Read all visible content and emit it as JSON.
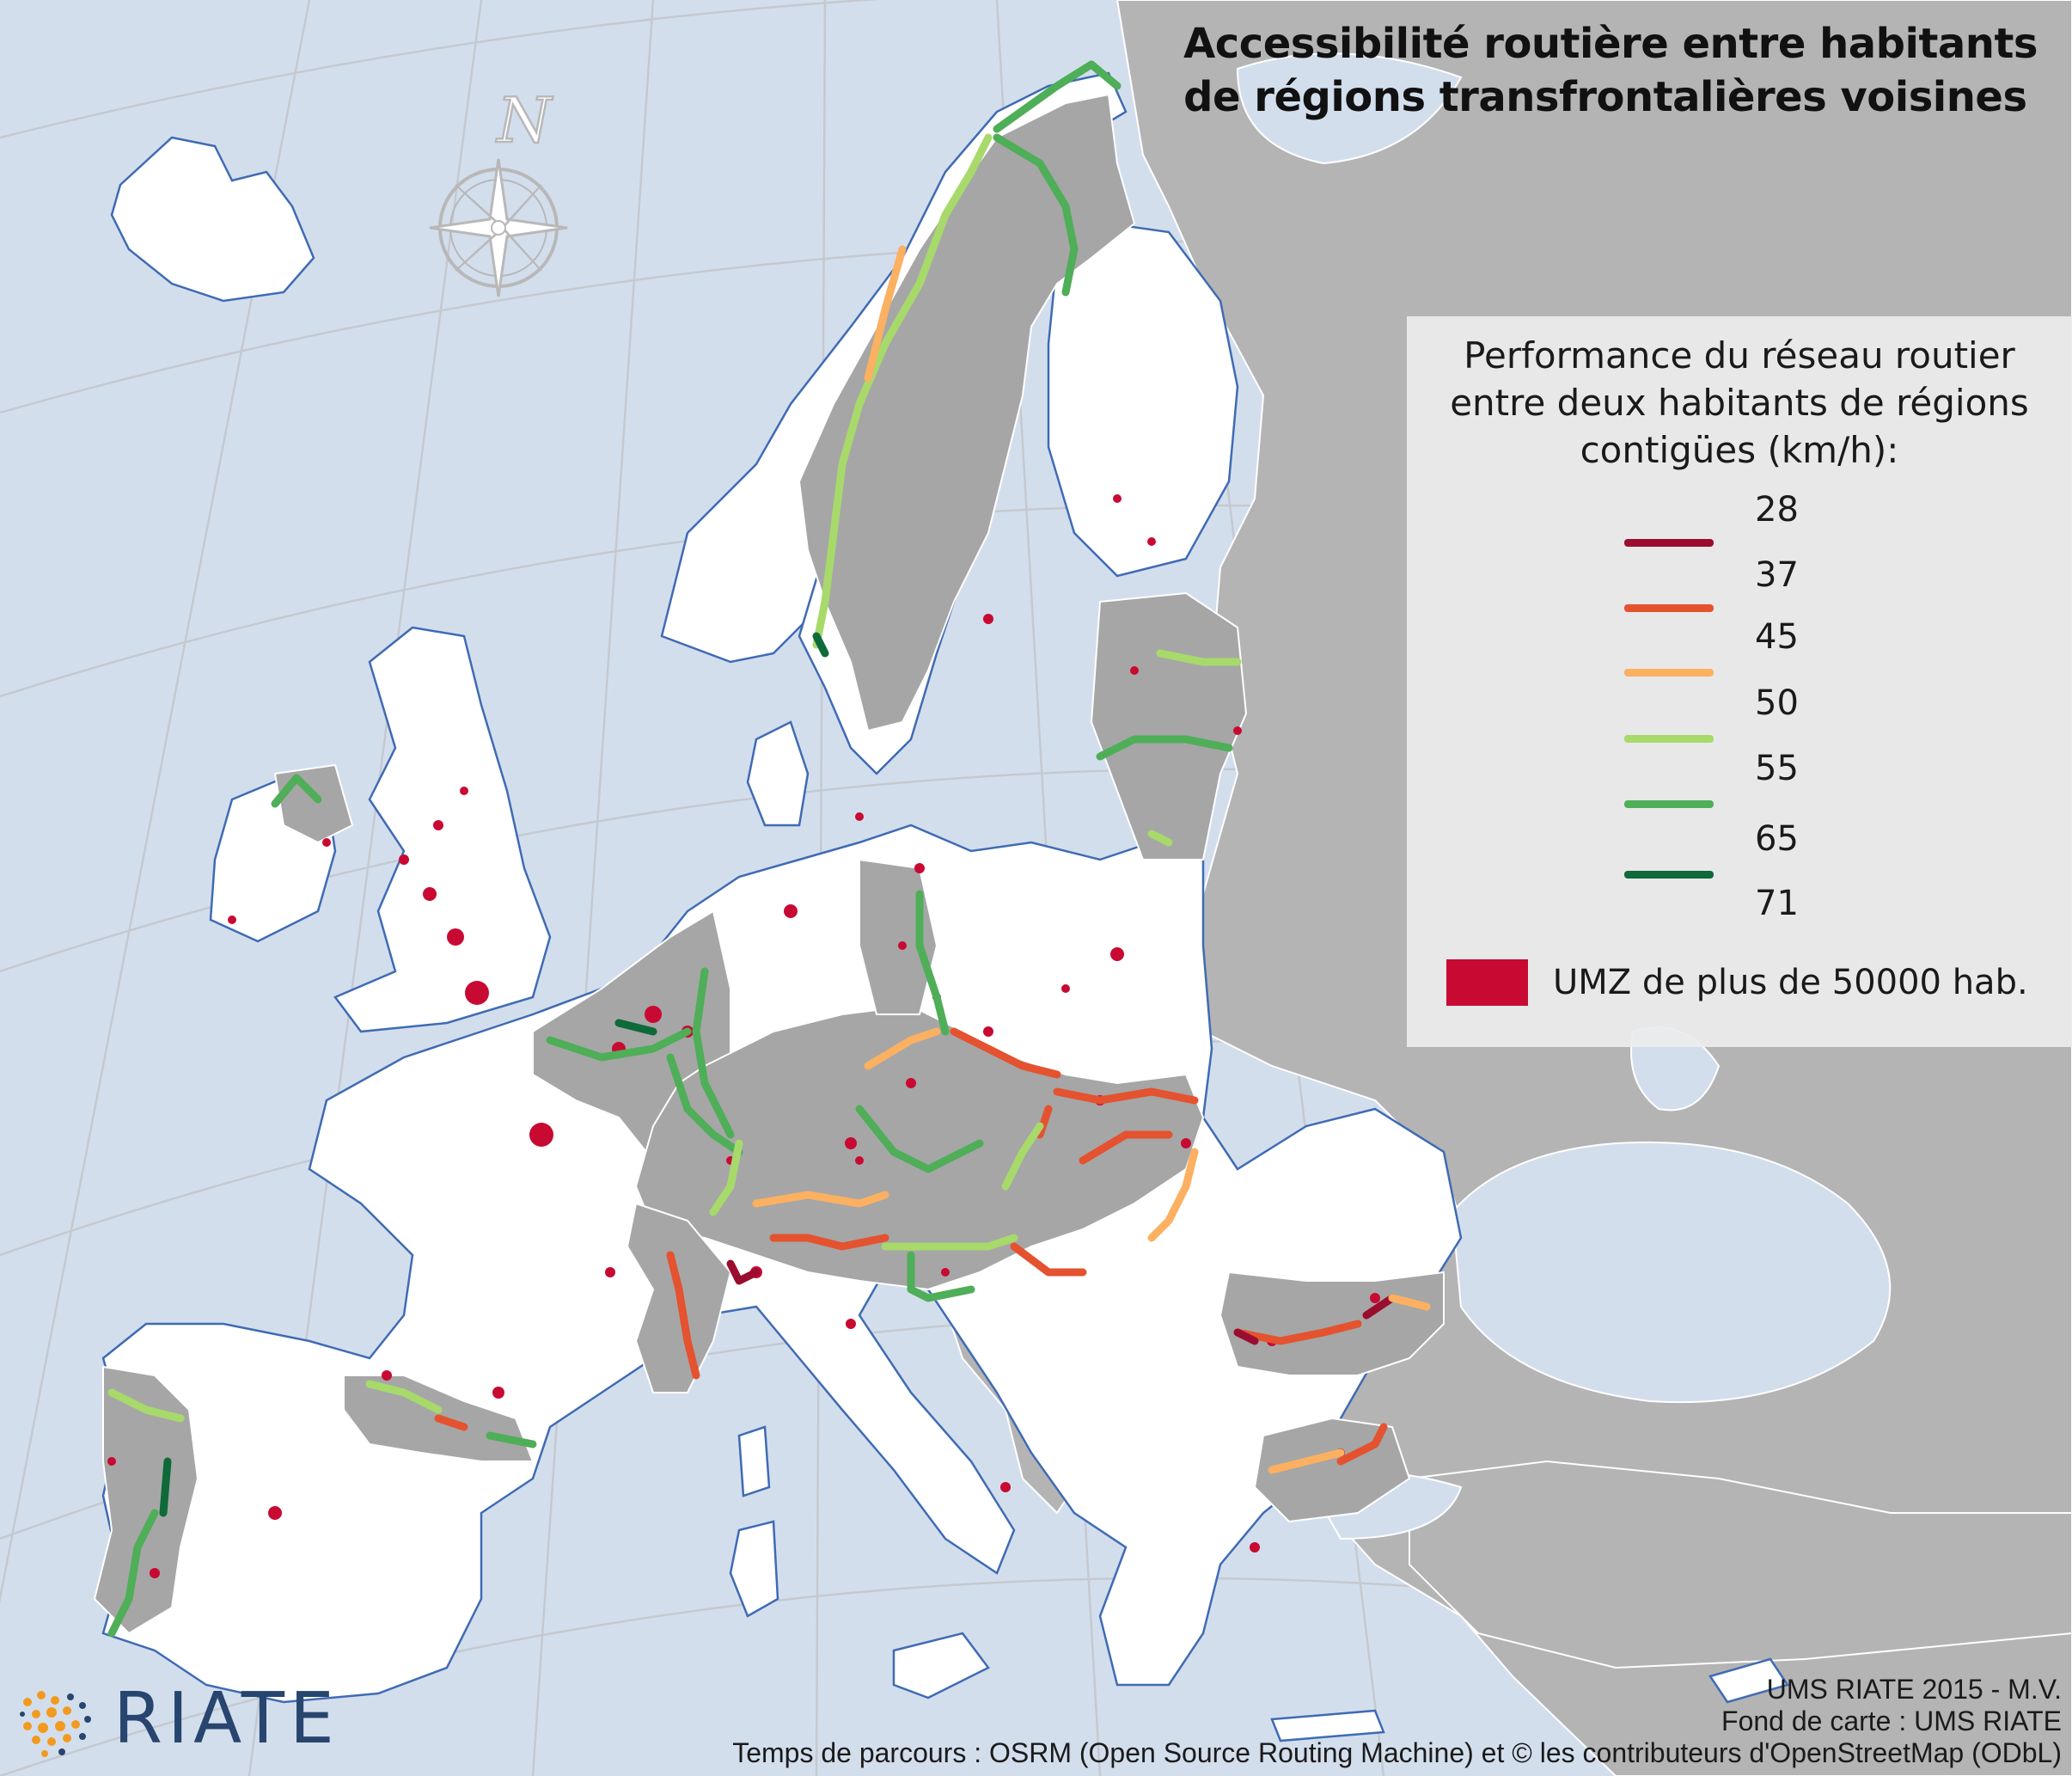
{
  "title": {
    "line1": "Accessibilité routière entre habitants",
    "line2": "de régions transfrontalières voisines"
  },
  "compass": {
    "north_label": "N"
  },
  "legend": {
    "title_lines": [
      "Performance du réseau routier",
      "entre deux habitants de régions",
      "contigües (km/h):"
    ],
    "classes": [
      {
        "value": "28",
        "color": "#9b0d2e"
      },
      {
        "value": "37",
        "color": "#e4522f"
      },
      {
        "value": "45",
        "color": "#fcb061"
      },
      {
        "value": "50",
        "color": "#ffffff"
      },
      {
        "value": "55",
        "color": "#a8d96b"
      },
      {
        "value": "65",
        "color": "#4fae58"
      },
      {
        "value": "71",
        "color": "#0e6a39"
      }
    ],
    "umz": {
      "label": "UMZ de plus de 50000 hab.",
      "color": "#c80a33"
    }
  },
  "credits": [
    "UMS RIATE 2015 - M.V.",
    "Fond de carte : UMS RIATE",
    "Temps de parcours : OSRM (Open Source Routing Machine) et © les contributeurs d'OpenStreetMap (ODbL)"
  ],
  "logo": {
    "text": "RIATE",
    "color": "#27456e"
  },
  "colors": {
    "sea": "#d3deed",
    "land_in_scope": "#ffffff",
    "land_out_of_scope": "#b4b4b4",
    "border_region": "#a6a6a6",
    "graticule": "#c8c8c8"
  }
}
